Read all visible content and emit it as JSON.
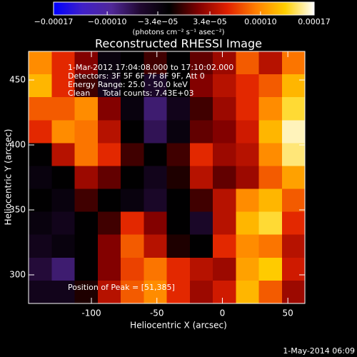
{
  "chart_data": {
    "type": "heatmap",
    "title": "Reconstructed RHESSI Image",
    "xlabel": "Heliocentric X (arcsec)",
    "ylabel": "Heliocentric Y (arcsec)",
    "xlim": [
      -148,
      63
    ],
    "ylim": [
      278,
      472
    ],
    "xticks": [
      -100,
      -50,
      0,
      50
    ],
    "yticks": [
      300,
      350,
      400,
      450
    ],
    "z": [
      [
        0.0001,
        6e-05,
        2e-05,
        -3e-05,
        -2e-05,
        0.0,
        -2e-05,
        1e-05,
        3e-05,
        8e-05,
        4e-05,
        9e-05
      ],
      [
        0.00012,
        6e-05,
        0.0,
        -4e-05,
        -2e-05,
        -5e-05,
        -2e-05,
        2e-05,
        4e-05,
        6e-05,
        8e-05,
        0.00012
      ],
      [
        8e-05,
        8e-05,
        0.0001,
        2e-05,
        -3e-05,
        -8e-05,
        -4e-05,
        0.0,
        3e-05,
        6e-05,
        0.0001,
        0.00014
      ],
      [
        6e-05,
        0.0001,
        9e-05,
        4e-05,
        -2e-05,
        -7e-05,
        -3e-05,
        1e-05,
        2e-05,
        5e-05,
        0.00012,
        0.00016
      ],
      [
        -2e-05,
        4e-05,
        9e-05,
        6e-05,
        0.0,
        -2e-05,
        0.0,
        6e-05,
        3e-05,
        4e-05,
        0.0001,
        0.00015
      ],
      [
        -3e-05,
        -2e-05,
        3e-05,
        1e-05,
        -2e-05,
        -4e-05,
        -1e-05,
        4e-05,
        1e-05,
        3e-05,
        8e-05,
        0.00011
      ],
      [
        -2e-05,
        -3e-05,
        0.0,
        -2e-05,
        -3e-05,
        -5e-05,
        -2e-05,
        0.0,
        4e-05,
        0.0001,
        0.00012,
        8e-05
      ],
      [
        -3e-05,
        -4e-05,
        -2e-05,
        0.0,
        6e-05,
        2e-05,
        -2e-05,
        -5e-05,
        4e-05,
        0.00012,
        0.00014,
        6e-05
      ],
      [
        -4e-05,
        -3e-05,
        -2e-05,
        2e-05,
        8e-05,
        4e-05,
        -1e-05,
        -2e-05,
        6e-05,
        0.0001,
        9e-05,
        4e-05
      ],
      [
        -6e-05,
        -8e-05,
        -2e-05,
        2e-05,
        7e-05,
        9e-05,
        6e-05,
        4e-05,
        3e-05,
        0.00011,
        0.00013,
        5e-05
      ],
      [
        -4e-05,
        -4e-05,
        -1e-05,
        4e-05,
        8e-05,
        0.0001,
        6e-05,
        3e-05,
        5e-05,
        0.00012,
        8e-05,
        3e-05
      ]
    ],
    "zlim": [
      -0.00017,
      0.00017
    ],
    "zticks": [
      {
        "value": -0.00017,
        "label": "−0.00017"
      },
      {
        "value": -0.0001,
        "label": "−0.00010"
      },
      {
        "value": -3.4e-05,
        "label": "−3.4e−05"
      },
      {
        "value": 3.4e-05,
        "label": "3.4e−05"
      },
      {
        "value": 0.0001,
        "label": "0.00010"
      },
      {
        "value": 0.00017,
        "label": "0.00017"
      }
    ],
    "colorbar_label": "(photons cm⁻² s⁻¹ asec⁻²)",
    "colorscale": [
      "#0000ff",
      "#4020c8",
      "#502898",
      "#200830",
      "#000000",
      "#800000",
      "#e02000",
      "#ff8000",
      "#ffd000",
      "#ffffff"
    ],
    "annotations": [
      "1-Mar-2012 17:04:08.000 to 17:10:02.000",
      "Detectors: 3F 5F 6F 7F 8F 9F, Att 0",
      "Energy Range: 25.0 - 50.0 keV",
      "Clean     Total counts: 7.43E+03"
    ],
    "peak_label": "Position of Peak = [51,385]",
    "footer": "1-May-2014 06:09"
  }
}
